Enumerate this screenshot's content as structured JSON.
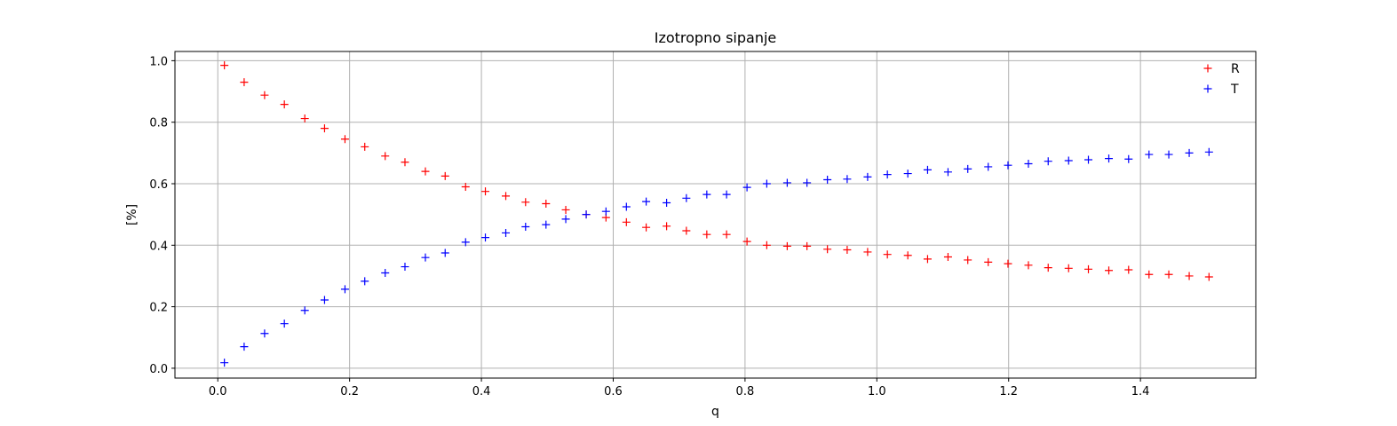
{
  "chart_data": {
    "type": "scatter",
    "title": "Izotropno sipanje",
    "xlabel": "q",
    "ylabel": "[%]",
    "xlim": [
      -0.065,
      1.575
    ],
    "ylim": [
      -0.032,
      1.03
    ],
    "xticks": [
      0.0,
      0.2,
      0.4,
      0.6,
      0.8,
      1.0,
      1.2,
      1.4
    ],
    "xtick_labels": [
      "0.0",
      "0.2",
      "0.4",
      "0.6",
      "0.8",
      "1.0",
      "1.2",
      "1.4"
    ],
    "yticks": [
      0.0,
      0.2,
      0.4,
      0.6,
      0.8,
      1.0
    ],
    "ytick_labels": [
      "0.0",
      "0.2",
      "0.4",
      "0.6",
      "0.8",
      "1.0"
    ],
    "grid": true,
    "legend_position": "top-right",
    "marker": "+",
    "x": [
      0.01,
      0.04,
      0.071,
      0.101,
      0.132,
      0.162,
      0.193,
      0.223,
      0.254,
      0.284,
      0.315,
      0.345,
      0.376,
      0.406,
      0.437,
      0.467,
      0.498,
      0.528,
      0.559,
      0.589,
      0.62,
      0.65,
      0.681,
      0.711,
      0.742,
      0.772,
      0.803,
      0.833,
      0.864,
      0.894,
      0.925,
      0.955,
      0.986,
      1.016,
      1.047,
      1.077,
      1.108,
      1.138,
      1.169,
      1.199,
      1.23,
      1.26,
      1.291,
      1.321,
      1.352,
      1.382,
      1.413,
      1.443,
      1.474,
      1.504
    ],
    "series": [
      {
        "name": "R",
        "color": "#ff0000",
        "values": [
          0.985,
          0.93,
          0.888,
          0.858,
          0.812,
          0.78,
          0.745,
          0.72,
          0.69,
          0.67,
          0.64,
          0.625,
          0.59,
          0.575,
          0.56,
          0.54,
          0.535,
          0.515,
          0.5,
          0.49,
          0.475,
          0.458,
          0.462,
          0.447,
          0.435,
          0.435,
          0.412,
          0.4,
          0.397,
          0.397,
          0.387,
          0.385,
          0.378,
          0.37,
          0.367,
          0.355,
          0.362,
          0.352,
          0.345,
          0.34,
          0.335,
          0.327,
          0.325,
          0.322,
          0.318,
          0.32,
          0.305,
          0.305,
          0.3,
          0.297
        ]
      },
      {
        "name": "T",
        "color": "#0000ff",
        "values": [
          0.018,
          0.07,
          0.113,
          0.145,
          0.188,
          0.222,
          0.257,
          0.283,
          0.31,
          0.33,
          0.36,
          0.375,
          0.41,
          0.425,
          0.44,
          0.46,
          0.467,
          0.485,
          0.5,
          0.51,
          0.525,
          0.542,
          0.538,
          0.553,
          0.565,
          0.565,
          0.588,
          0.6,
          0.603,
          0.603,
          0.613,
          0.615,
          0.622,
          0.63,
          0.633,
          0.645,
          0.638,
          0.648,
          0.655,
          0.66,
          0.665,
          0.673,
          0.675,
          0.678,
          0.682,
          0.68,
          0.695,
          0.695,
          0.7,
          0.703
        ]
      }
    ]
  }
}
